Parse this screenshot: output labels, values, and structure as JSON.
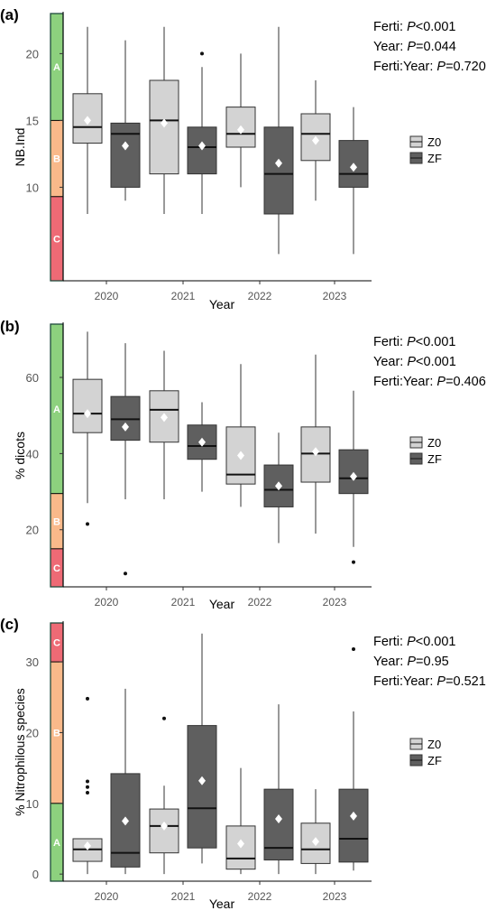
{
  "chart_data": [
    {
      "panel_label": "(a)",
      "type": "box",
      "xlabel": "Year",
      "ylabel": "NB.Ind",
      "ylim": [
        3,
        23
      ],
      "yticks": [
        10,
        15,
        20
      ],
      "categories": [
        "2020",
        "2021",
        "2022",
        "2023"
      ],
      "legend": [
        {
          "name": "Z0",
          "color": "#d3d3d3"
        },
        {
          "name": "ZF",
          "color": "#5f5f5f"
        }
      ],
      "stats": [
        {
          "label": "Ferti: ",
          "p": "P",
          "value": "<0.001"
        },
        {
          "label": "Year: ",
          "p": "P",
          "value": "=0.044"
        },
        {
          "label": "Ferti:Year: ",
          "p": "P",
          "value": "=0.720"
        }
      ],
      "zones": [
        {
          "label": "A",
          "from": 15,
          "to": 23,
          "color": "#8dd17e"
        },
        {
          "label": "B",
          "from": 9.3,
          "to": 15,
          "color": "#f9b98a"
        },
        {
          "label": "C",
          "from": 3,
          "to": 9.3,
          "color": "#ee6a75"
        }
      ],
      "series": [
        {
          "name": "Z0",
          "boxes": [
            {
              "min": 8,
              "q1": 13.3,
              "median": 14.5,
              "q3": 17,
              "max": 22,
              "mean": 15,
              "outliers": []
            },
            {
              "min": 8,
              "q1": 11,
              "median": 15,
              "q3": 18,
              "max": 22,
              "mean": 14.8,
              "outliers": []
            },
            {
              "min": 10,
              "q1": 13,
              "median": 14,
              "q3": 16,
              "max": 20,
              "mean": 14.3,
              "outliers": []
            },
            {
              "min": 9,
              "q1": 12,
              "median": 14,
              "q3": 15.5,
              "max": 18,
              "mean": 13.5,
              "outliers": []
            }
          ]
        },
        {
          "name": "ZF",
          "boxes": [
            {
              "min": 9,
              "q1": 10,
              "median": 14,
              "q3": 14.8,
              "max": 21,
              "mean": 13.1,
              "outliers": []
            },
            {
              "min": 8,
              "q1": 11,
              "median": 13,
              "q3": 14.5,
              "max": 19,
              "mean": 13.1,
              "outliers": [
                20
              ]
            },
            {
              "min": 5,
              "q1": 8,
              "median": 11,
              "q3": 14.5,
              "max": 22,
              "mean": 11.8,
              "outliers": []
            },
            {
              "min": 5,
              "q1": 10,
              "median": 11,
              "q3": 13.5,
              "max": 16,
              "mean": 11.5,
              "outliers": []
            }
          ]
        }
      ]
    },
    {
      "panel_label": "(b)",
      "type": "box",
      "xlabel": "Year",
      "ylabel": "% dicots",
      "ylim": [
        5,
        74
      ],
      "yticks": [
        20,
        40,
        60
      ],
      "categories": [
        "2020",
        "2021",
        "2022",
        "2023"
      ],
      "legend": [
        {
          "name": "Z0",
          "color": "#d3d3d3"
        },
        {
          "name": "ZF",
          "color": "#5f5f5f"
        }
      ],
      "stats": [
        {
          "label": "Ferti: ",
          "p": "P",
          "value": "<0.001"
        },
        {
          "label": "Year: ",
          "p": "P",
          "value": "<0.001"
        },
        {
          "label": "Ferti:Year: ",
          "p": "P",
          "value": "=0.406"
        }
      ],
      "zones": [
        {
          "label": "A",
          "from": 29.5,
          "to": 74,
          "color": "#8dd17e"
        },
        {
          "label": "B",
          "from": 15,
          "to": 29.5,
          "color": "#f9b98a"
        },
        {
          "label": "C",
          "from": 5,
          "to": 15,
          "color": "#ee6a75"
        }
      ],
      "series": [
        {
          "name": "Z0",
          "boxes": [
            {
              "min": 27,
              "q1": 45.5,
              "median": 50.5,
              "q3": 59.5,
              "max": 72,
              "mean": 50.5,
              "outliers": [
                21.5
              ]
            },
            {
              "min": 28,
              "q1": 43,
              "median": 51.5,
              "q3": 56.5,
              "max": 67,
              "mean": 49.5,
              "outliers": []
            },
            {
              "min": 26,
              "q1": 32,
              "median": 34.5,
              "q3": 47,
              "max": 63.5,
              "mean": 39.5,
              "outliers": []
            },
            {
              "min": 19,
              "q1": 32.5,
              "median": 40,
              "q3": 47,
              "max": 66,
              "mean": 40.5,
              "outliers": []
            }
          ]
        },
        {
          "name": "ZF",
          "boxes": [
            {
              "min": 28,
              "q1": 43.5,
              "median": 49,
              "q3": 55,
              "max": 69,
              "mean": 47,
              "outliers": [
                8.5
              ]
            },
            {
              "min": 30,
              "q1": 38.5,
              "median": 42,
              "q3": 47.5,
              "max": 53.5,
              "mean": 43,
              "outliers": []
            },
            {
              "min": 16.5,
              "q1": 26,
              "median": 30.5,
              "q3": 37,
              "max": 45.5,
              "mean": 31.5,
              "outliers": []
            },
            {
              "min": 15.5,
              "q1": 29.5,
              "median": 33.5,
              "q3": 41,
              "max": 56.5,
              "mean": 34,
              "outliers": [
                11.5
              ]
            }
          ]
        }
      ]
    },
    {
      "panel_label": "(c)",
      "type": "box",
      "xlabel": "Year",
      "ylabel": "% Nitrophilous species",
      "ylim": [
        -1,
        35.5
      ],
      "yticks": [
        0,
        10,
        20,
        30
      ],
      "categories": [
        "2020",
        "2021",
        "2022",
        "2023"
      ],
      "legend": [
        {
          "name": "Z0",
          "color": "#d3d3d3"
        },
        {
          "name": "ZF",
          "color": "#5f5f5f"
        }
      ],
      "stats": [
        {
          "label": "Ferti: ",
          "p": "P",
          "value": "<0.001"
        },
        {
          "label": "Year: ",
          "p": "P",
          "value": "=0.95"
        },
        {
          "label": "Ferti:Year: ",
          "p": "P",
          "value": "=0.521"
        }
      ],
      "zones": [
        {
          "label": "C",
          "from": 30,
          "to": 35.5,
          "color": "#ee6a75"
        },
        {
          "label": "B",
          "from": 10,
          "to": 30,
          "color": "#f9b98a"
        },
        {
          "label": "A",
          "from": -1,
          "to": 10,
          "color": "#8dd17e"
        }
      ],
      "series": [
        {
          "name": "Z0",
          "boxes": [
            {
              "min": 0,
              "q1": 1.8,
              "median": 3.5,
              "q3": 5,
              "max": 5,
              "mean": 4,
              "outliers": [
                11.5,
                12.3,
                13.1,
                24.8
              ]
            },
            {
              "min": 0,
              "q1": 3,
              "median": 6.8,
              "q3": 9.2,
              "max": 12.5,
              "mean": 6.8,
              "outliers": [
                22
              ]
            },
            {
              "min": 0,
              "q1": 0.7,
              "median": 2.2,
              "q3": 6.8,
              "max": 15,
              "mean": 4.3,
              "outliers": []
            },
            {
              "min": 0,
              "q1": 1.5,
              "median": 3.5,
              "q3": 7.2,
              "max": 12,
              "mean": 4.6,
              "outliers": []
            }
          ]
        },
        {
          "name": "ZF",
          "boxes": [
            {
              "min": 0,
              "q1": 1,
              "median": 3,
              "q3": 14.2,
              "max": 26.2,
              "mean": 7.5,
              "outliers": []
            },
            {
              "min": 1.5,
              "q1": 3.7,
              "median": 9.3,
              "q3": 21,
              "max": 34,
              "mean": 13.2,
              "outliers": []
            },
            {
              "min": 0,
              "q1": 2,
              "median": 3.7,
              "q3": 12,
              "max": 24,
              "mean": 7.8,
              "outliers": []
            },
            {
              "min": 0.5,
              "q1": 1.7,
              "median": 5,
              "q3": 12,
              "max": 23,
              "mean": 8.2,
              "outliers": [
                31.8
              ]
            }
          ]
        }
      ]
    }
  ]
}
